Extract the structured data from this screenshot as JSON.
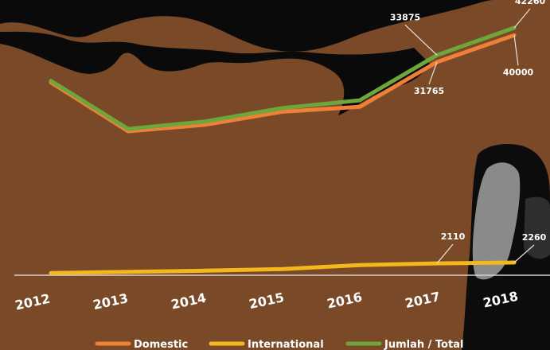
{
  "chart_data": {
    "type": "line",
    "title": "",
    "xlabel": "",
    "ylabel": "",
    "grid": false,
    "legend_position": "bottom",
    "x": [
      "2012",
      "2013",
      "2014",
      "2015",
      "2016",
      "2017",
      "2018"
    ],
    "series": [
      {
        "name": "Domestic",
        "color": "#f07f3a",
        "values": [
          25500,
          10500,
          12500,
          16500,
          18000,
          31765,
          40000
        ]
      },
      {
        "name": "International",
        "color": "#f3b81c",
        "values": [
          400,
          600,
          800,
          1100,
          1800,
          2110,
          2260
        ]
      },
      {
        "name": "Jumlah / Total",
        "color": "#6fa63c",
        "values": [
          26000,
          11200,
          13500,
          17600,
          20000,
          33875,
          42260
        ]
      }
    ],
    "annotations": [
      {
        "label": "33875",
        "series": 2,
        "index": 5
      },
      {
        "label": "31765",
        "series": 0,
        "index": 5
      },
      {
        "label": "42260",
        "series": 2,
        "index": 6
      },
      {
        "label": "40000",
        "series": 0,
        "index": 6
      },
      {
        "label": "2110",
        "series": 1,
        "index": 5
      },
      {
        "label": "2260",
        "series": 1,
        "index": 6
      }
    ]
  }
}
